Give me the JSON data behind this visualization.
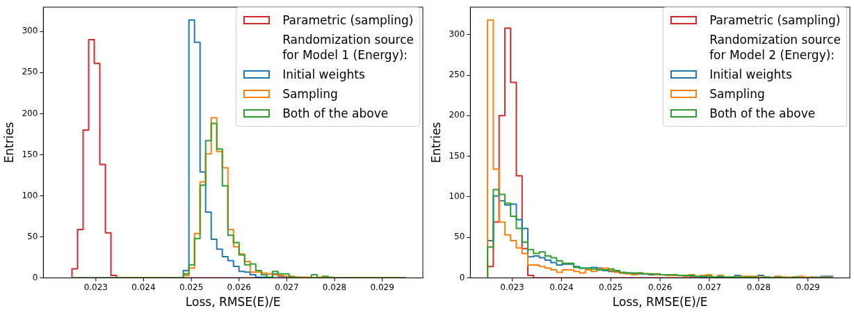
{
  "chart_data": [
    {
      "type": "histogram",
      "xlabel": "Loss, RMSE(E)/E",
      "ylabel": "Entries",
      "legend": "top right",
      "legend_title": "Randomization source\nfor Model 1 (Energy):",
      "bins": [
        0.0225,
        0.0226167,
        0.0227333,
        0.02285,
        0.0229667,
        0.0230833,
        0.0232,
        0.0233167,
        0.0234333,
        0.02355,
        0.0236667,
        0.0237833,
        0.0239,
        0.0240167,
        0.0241333,
        0.02425,
        0.0243667,
        0.0244833,
        0.0246,
        0.0247167,
        0.0248333,
        0.02495,
        0.0250667,
        0.0251833,
        0.0253,
        0.0254167,
        0.0255333,
        0.02565,
        0.0257667,
        0.0258833,
        0.026,
        0.0261167,
        0.0262333,
        0.02635,
        0.0264667,
        0.0265833,
        0.0267,
        0.0268167,
        0.0269333,
        0.02705,
        0.0271667,
        0.0272833,
        0.0274,
        0.0275167,
        0.0276333,
        0.02775,
        0.0278667,
        0.0279833,
        0.0281,
        0.0282167,
        0.0283333,
        0.02845,
        0.0285667,
        0.0286833,
        0.0288,
        0.0289167,
        0.0290333,
        0.02915,
        0.0292667,
        0.0293833,
        0.0295
      ],
      "xlim": [
        0.0219,
        0.02985
      ],
      "xticks": [
        0.023,
        0.024,
        0.025,
        0.026,
        0.027,
        0.028,
        0.029
      ],
      "ylim": [
        0,
        329.7
      ],
      "yticks": [
        0,
        50,
        100,
        150,
        200,
        250,
        300
      ],
      "series": [
        {
          "name": "Parametric (sampling)",
          "color": "#d62728",
          "values": [
            11,
            59,
            180,
            290,
            261,
            138,
            55,
            3,
            0,
            0,
            0,
            0,
            0,
            0,
            0,
            0,
            0,
            0,
            0,
            0,
            0,
            0,
            0,
            0,
            0,
            0,
            0,
            0,
            0,
            0,
            0,
            0,
            0,
            0,
            0,
            0,
            0,
            0,
            0,
            0,
            0,
            0,
            0,
            0,
            0,
            0,
            0,
            0,
            0,
            0,
            0,
            0,
            0,
            0,
            0,
            0,
            0,
            0,
            0,
            0
          ]
        },
        {
          "name": "Initial weights",
          "color": "#1f77b4",
          "values": [
            0,
            0,
            0,
            0,
            0,
            0,
            0,
            0,
            0,
            0,
            0,
            0,
            0,
            0,
            0,
            0,
            0,
            0,
            0,
            0,
            9,
            314,
            287,
            129,
            80,
            47,
            35,
            26,
            21,
            14,
            8,
            7,
            4,
            1,
            1,
            0,
            5,
            2,
            0,
            0,
            1,
            0,
            0,
            0,
            0,
            0,
            0,
            0,
            0,
            0,
            0,
            0,
            0,
            0,
            0,
            0,
            0,
            0,
            0,
            0
          ]
        },
        {
          "name": "Sampling",
          "color": "#ff7f0e",
          "values": [
            0,
            0,
            0,
            0,
            0,
            0,
            0,
            0,
            0,
            0,
            0,
            0,
            0,
            0,
            0,
            0,
            0,
            0,
            0,
            0,
            3,
            12,
            54,
            117,
            151,
            195,
            154,
            134,
            59,
            38,
            29,
            20,
            7,
            7,
            6,
            5,
            4,
            3,
            2,
            2,
            1,
            1,
            1,
            0,
            1,
            0,
            1,
            0,
            0,
            0,
            0,
            0,
            0,
            0,
            0,
            0,
            0,
            0,
            0,
            0
          ]
        },
        {
          "name": "Both of the above",
          "color": "#2ca02c",
          "values": [
            0,
            0,
            0,
            0,
            0,
            0,
            0,
            0,
            0,
            0,
            0,
            0,
            0,
            0,
            0,
            0,
            0,
            0,
            0,
            0,
            5,
            16,
            48,
            113,
            167,
            188,
            157,
            112,
            52,
            43,
            28,
            16,
            17,
            9,
            4,
            1,
            8,
            5,
            5,
            1,
            0,
            0,
            0,
            4,
            0,
            2,
            0,
            0,
            0,
            0,
            0,
            0,
            0,
            0,
            0,
            0,
            0,
            0,
            0,
            0
          ]
        }
      ]
    },
    {
      "type": "histogram",
      "xlabel": "Loss, RMSE(E)/E",
      "ylabel": "Entries",
      "legend": "top right",
      "legend_title": "Randomization source\nfor Model 2 (Energy):",
      "bins": [
        0.0225,
        0.0226167,
        0.0227333,
        0.02285,
        0.0229667,
        0.0230833,
        0.0232,
        0.0233167,
        0.0234333,
        0.02355,
        0.0236667,
        0.0237833,
        0.0239,
        0.0240167,
        0.0241333,
        0.02425,
        0.0243667,
        0.0244833,
        0.0246,
        0.0247167,
        0.0248333,
        0.02495,
        0.0250667,
        0.0251833,
        0.0253,
        0.0254167,
        0.0255333,
        0.02565,
        0.0257667,
        0.0258833,
        0.026,
        0.0261167,
        0.0262333,
        0.02635,
        0.0264667,
        0.0265833,
        0.0267,
        0.0268167,
        0.0269333,
        0.02705,
        0.0271667,
        0.0272833,
        0.0274,
        0.0275167,
        0.0276333,
        0.02775,
        0.0278667,
        0.0279833,
        0.0281,
        0.0282167,
        0.0283333,
        0.02845,
        0.0285667,
        0.0286833,
        0.0288,
        0.0289167,
        0.0290333,
        0.02915,
        0.0292667,
        0.0293833,
        0.0295
      ],
      "xlim": [
        0.02215,
        0.02985
      ],
      "xticks": [
        0.023,
        0.024,
        0.025,
        0.026,
        0.027,
        0.028,
        0.029
      ],
      "ylim": [
        0,
        333.9
      ],
      "yticks": [
        0,
        50,
        100,
        150,
        200,
        250,
        300
      ],
      "series": [
        {
          "name": "Parametric (sampling)",
          "color": "#d62728",
          "values": [
            14,
            69,
            200,
            308,
            241,
            126,
            36,
            3,
            0,
            0,
            0,
            0,
            0,
            0,
            0,
            0,
            0,
            0,
            0,
            0,
            0,
            0,
            0,
            0,
            0,
            0,
            0,
            0,
            0,
            0,
            0,
            0,
            0,
            0,
            0,
            0,
            0,
            0,
            0,
            0,
            0,
            0,
            0,
            0,
            0,
            0,
            0,
            0,
            0,
            0,
            0,
            0,
            0,
            0,
            0,
            0,
            0,
            0,
            0,
            0
          ]
        },
        {
          "name": "Initial weights",
          "color": "#1f77b4",
          "values": [
            46,
            101,
            95,
            90,
            91,
            72,
            61,
            26,
            27,
            25,
            22,
            19,
            16,
            17,
            17,
            14,
            12,
            12,
            13,
            12,
            9,
            8,
            8,
            6,
            6,
            5,
            5,
            5,
            4,
            4,
            4,
            3,
            4,
            3,
            2,
            2,
            2,
            1,
            2,
            1,
            1,
            1,
            1,
            3,
            1,
            0,
            1,
            3,
            1,
            0,
            1,
            1,
            0,
            1,
            0,
            0,
            1,
            1,
            2,
            2
          ]
        },
        {
          "name": "Sampling",
          "color": "#ff7f0e",
          "values": [
            318,
            134,
            69,
            53,
            46,
            37,
            30,
            16,
            16,
            14,
            12,
            10,
            7,
            10,
            10,
            8,
            6,
            10,
            8,
            11,
            12,
            9,
            7,
            6,
            5,
            4,
            6,
            5,
            5,
            4,
            4,
            3,
            3,
            3,
            2,
            4,
            2,
            3,
            4,
            1,
            3,
            1,
            1,
            1,
            2,
            2,
            2,
            1,
            1,
            1,
            2,
            1,
            1,
            1,
            2,
            1,
            1,
            0,
            1,
            1
          ]
        },
        {
          "name": "Both of the above",
          "color": "#2ca02c",
          "values": [
            38,
            109,
            103,
            92,
            76,
            61,
            44,
            35,
            30,
            32,
            27,
            25,
            21,
            18,
            18,
            13,
            12,
            12,
            11,
            10,
            10,
            11,
            9,
            7,
            6,
            6,
            6,
            5,
            5,
            5,
            4,
            4,
            4,
            3,
            3,
            3,
            2,
            2,
            2,
            1,
            2,
            1,
            1,
            1,
            1,
            1,
            1,
            0,
            1,
            0,
            1,
            0,
            0,
            1,
            0,
            0,
            0,
            0,
            0,
            0
          ]
        }
      ]
    }
  ]
}
